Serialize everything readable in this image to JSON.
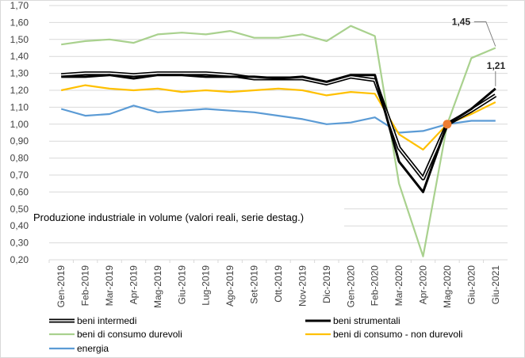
{
  "chart_data": {
    "type": "line",
    "title": "Produzione  industriale in volume (valori reali, serie destag.)",
    "xlabel": "",
    "ylabel": "",
    "ylim": [
      0.2,
      1.7
    ],
    "yticks": [
      "0,20",
      "0,30",
      "0,40",
      "0,50",
      "0,60",
      "0,70",
      "0,80",
      "0,90",
      "1,00",
      "1,10",
      "1,20",
      "1,30",
      "1,40",
      "1,50",
      "1,60",
      "1,70"
    ],
    "grid": true,
    "legend_position": "bottom",
    "categories": [
      "Gen-2019",
      "Feb-2019",
      "Mar-2019",
      "Apr-2019",
      "Mag-2019",
      "Giu-2019",
      "Lug-2019",
      "Ago-2019",
      "Set-2019",
      "Ott-2019",
      "Nov-2019",
      "Dic-2019",
      "Gen-2020",
      "Feb-2020",
      "Mar-2020",
      "Apr-2020",
      "Mag-2020",
      "Giu-2020",
      "Giu-2021"
    ],
    "series": [
      {
        "name": "beni intermedi",
        "color": "#000000",
        "style": "outlined",
        "values": [
          1.29,
          1.3,
          1.3,
          1.29,
          1.3,
          1.3,
          1.3,
          1.29,
          1.27,
          1.27,
          1.27,
          1.24,
          1.28,
          1.26,
          0.86,
          0.68,
          1.0,
          1.08,
          1.17
        ]
      },
      {
        "name": "beni strumentali",
        "color": "#000000",
        "style": "bold",
        "values": [
          1.28,
          1.28,
          1.29,
          1.27,
          1.29,
          1.29,
          1.28,
          1.28,
          1.28,
          1.27,
          1.28,
          1.25,
          1.29,
          1.29,
          0.78,
          0.6,
          1.0,
          1.09,
          1.21
        ]
      },
      {
        "name": "beni di consumo durevoli",
        "color": "#a9d18e",
        "style": "normal",
        "values": [
          1.47,
          1.49,
          1.5,
          1.48,
          1.53,
          1.54,
          1.53,
          1.55,
          1.51,
          1.51,
          1.53,
          1.49,
          1.58,
          1.52,
          0.65,
          0.22,
          1.0,
          1.39,
          1.45
        ]
      },
      {
        "name": "beni di consumo - non durevoli",
        "color": "#ffc000",
        "style": "normal",
        "values": [
          1.2,
          1.23,
          1.21,
          1.2,
          1.21,
          1.19,
          1.2,
          1.19,
          1.2,
          1.21,
          1.2,
          1.17,
          1.19,
          1.18,
          0.94,
          0.85,
          1.0,
          1.06,
          1.13
        ]
      },
      {
        "name": "energia",
        "color": "#5b9bd5",
        "style": "normal",
        "values": [
          1.09,
          1.05,
          1.06,
          1.11,
          1.07,
          1.08,
          1.09,
          1.08,
          1.07,
          1.05,
          1.03,
          1.0,
          1.01,
          1.04,
          0.95,
          0.96,
          1.0,
          1.02,
          1.02
        ]
      }
    ],
    "marker": {
      "category": "Mag-2020",
      "value": 1.0,
      "color": "#ed7d31"
    },
    "annotations": [
      {
        "text": "1,45",
        "series": "beni di consumo durevoli",
        "category": "Giu-2021"
      },
      {
        "text": "1,21",
        "series": "beni strumentali",
        "category": "Giu-2021"
      }
    ]
  }
}
